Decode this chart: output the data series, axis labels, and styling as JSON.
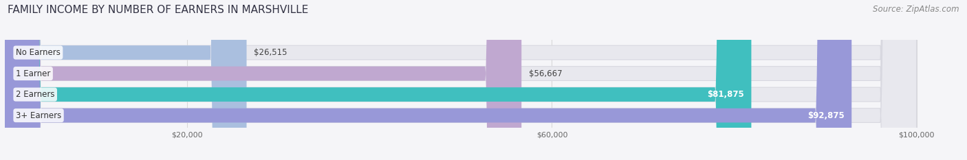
{
  "title": "FAMILY INCOME BY NUMBER OF EARNERS IN MARSHVILLE",
  "source": "Source: ZipAtlas.com",
  "categories": [
    "No Earners",
    "1 Earner",
    "2 Earners",
    "3+ Earners"
  ],
  "values": [
    26515,
    56667,
    81875,
    92875
  ],
  "bar_colors": [
    "#aabfdf",
    "#c0a8d0",
    "#40bfbf",
    "#9898d8"
  ],
  "label_colors": [
    "#555555",
    "#555555",
    "#ffffff",
    "#ffffff"
  ],
  "xlim": [
    0,
    105000
  ],
  "axis_max": 100000,
  "xticks": [
    20000,
    60000,
    100000
  ],
  "xtick_labels": [
    "$20,000",
    "$60,000",
    "$100,000"
  ],
  "background_color": "#f5f5f8",
  "bar_bg_color": "#e8e8ee",
  "bar_outline_color": "#d8d8e0",
  "title_fontsize": 11,
  "source_fontsize": 8.5,
  "label_fontsize": 8.5,
  "category_fontsize": 8.5
}
